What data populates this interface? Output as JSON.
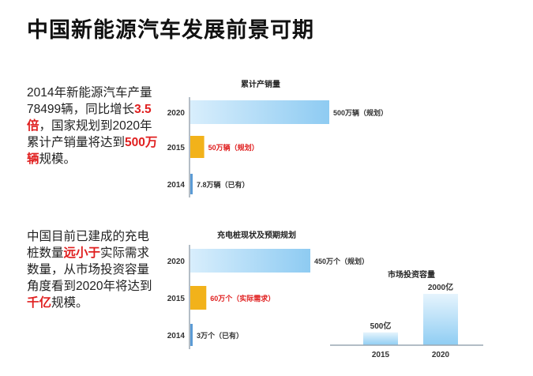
{
  "title": "中国新能源汽车发展前景可期",
  "paragraphs": [
    [
      {
        "text": "2014年新能源汽车产量78499辆，同比增长",
        "hl": false
      },
      {
        "text": "3.5倍",
        "hl": true
      },
      {
        "text": "，国家规划到2020年累计产销量将达到",
        "hl": false
      },
      {
        "text": "500万辆",
        "hl": true
      },
      {
        "text": "规模。",
        "hl": false
      }
    ],
    [
      {
        "text": "中国目前已建成的充电桩数量",
        "hl": false
      },
      {
        "text": "远小于",
        "hl": true
      },
      {
        "text": "实际需求数量，从市场投资容量角度看到2020年将达到",
        "hl": false
      },
      {
        "text": "千亿",
        "hl": true
      },
      {
        "text": "规模。",
        "hl": false
      }
    ]
  ],
  "colors": {
    "plan_bar": "#9fd3f4",
    "demand_bar": "#f2b21a",
    "existing_bar": "#5b9bd5",
    "invest_bar": "#a9dbf7",
    "highlight": "#e02020"
  },
  "chart_data": [
    {
      "type": "bar",
      "orientation": "horizontal",
      "title": "累计产销量",
      "categories": [
        "2020",
        "2015",
        "2014"
      ],
      "values": [
        500,
        50,
        7.8
      ],
      "value_labels": [
        "500万辆（规划）",
        "50万辆（规划）",
        "7.8万辆（已有）"
      ],
      "label_highlight": [
        false,
        true,
        false
      ],
      "bar_colors": [
        "plan_bar",
        "demand_bar",
        "existing_bar"
      ]
    },
    {
      "type": "bar",
      "orientation": "horizontal",
      "title": "充电桩现状及预期规划",
      "categories": [
        "2020",
        "2015",
        "2014"
      ],
      "values": [
        450,
        60,
        3
      ],
      "value_labels": [
        "450万个（规划）",
        "60万个（实际需求）",
        "3万个（已有）"
      ],
      "label_highlight": [
        false,
        true,
        false
      ],
      "bar_colors": [
        "plan_bar",
        "demand_bar",
        "existing_bar"
      ]
    },
    {
      "type": "bar",
      "orientation": "vertical",
      "title": "市场投资容量",
      "categories": [
        "2015",
        "2020"
      ],
      "values": [
        500,
        2000
      ],
      "value_labels": [
        "500亿",
        "2000亿"
      ],
      "bar_colors": [
        "invest_bar",
        "invest_bar"
      ]
    }
  ]
}
